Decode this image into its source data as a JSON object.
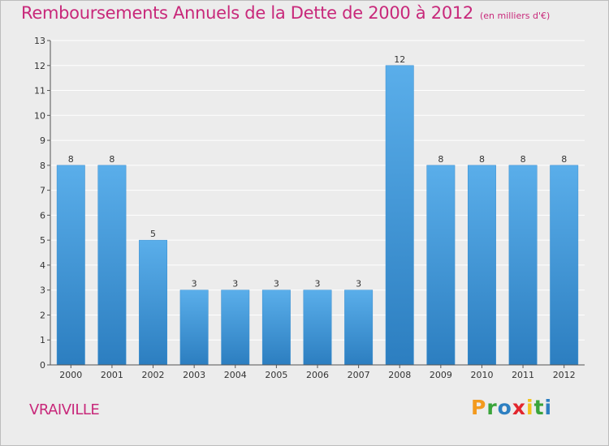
{
  "header": {
    "title": "Remboursements Annuels de la Dette de 2000 à 2012",
    "subtitle": "(en milliers d'€)"
  },
  "footer": {
    "place": "VRAIVILLE",
    "logo": "Proxiti"
  },
  "colors": {
    "title": "#c8287a",
    "bar_top": "#5aaeea",
    "bar_bottom": "#2c7ec0",
    "background": "#ececec",
    "grid": "#ffffff"
  },
  "chart_data": {
    "type": "bar",
    "title": "Remboursements Annuels de la Dette de 2000 à 2012",
    "subtitle": "(en milliers d'€)",
    "categories": [
      "2000",
      "2001",
      "2002",
      "2003",
      "2004",
      "2005",
      "2006",
      "2007",
      "2008",
      "2009",
      "2010",
      "2011",
      "2012"
    ],
    "values": [
      8,
      8,
      5,
      3,
      3,
      3,
      3,
      3,
      12,
      8,
      8,
      8,
      8
    ],
    "ylim": [
      0,
      13
    ],
    "yticks": [
      0,
      1,
      2,
      3,
      4,
      5,
      6,
      7,
      8,
      9,
      10,
      11,
      12,
      13
    ],
    "grid": true,
    "xlabel": "",
    "ylabel": ""
  }
}
